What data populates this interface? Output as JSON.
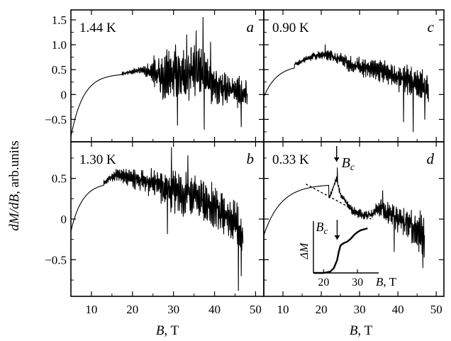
{
  "figure": {
    "ylabel_italic": "dM/dB",
    "ylabel_rest": ", arb.units",
    "xlabel_left_italic": "B",
    "xlabel_left_rest": ", T",
    "xlabel_right_italic": "B",
    "xlabel_right_rest": ", T"
  },
  "chart_data": [
    {
      "panel": "a",
      "position": "top-left",
      "type": "line",
      "temperature_label": "1.44 K",
      "letter": "a",
      "xlim": [
        5,
        52
      ],
      "ylim": [
        -0.95,
        1.7
      ],
      "yticks": [
        -0.5,
        0,
        0.5,
        1.0,
        1.5
      ],
      "ytick_labels": [
        "−0.5",
        "0",
        "0.5",
        "1.0",
        "1.5"
      ],
      "xticks": [
        10,
        20,
        30,
        40,
        50
      ],
      "xtick_labels": [],
      "series": [
        {
          "x_range": [
            5,
            48
          ],
          "smooth_end": 17.5,
          "rise": {
            "y0": -0.85,
            "y1": 0.42,
            "tau": 3.0
          },
          "trend": [
            [
              17.5,
              0.42
            ],
            [
              22,
              0.5
            ],
            [
              25,
              0.45
            ],
            [
              28,
              0.35
            ],
            [
              32,
              0.4
            ],
            [
              36,
              0.45
            ],
            [
              40,
              0.2
            ],
            [
              44,
              0.1
            ],
            [
              48,
              0.0
            ]
          ],
          "noise": [
            [
              17.5,
              0.04
            ],
            [
              22,
              0.07
            ],
            [
              25,
              0.25
            ],
            [
              28,
              0.55
            ],
            [
              32,
              0.6
            ],
            [
              36,
              0.6
            ],
            [
              40,
              0.4
            ],
            [
              44,
              0.35
            ],
            [
              48,
              0.3
            ]
          ],
          "spikes": [
            [
              25.2,
              0.78
            ],
            [
              37.2,
              1.55
            ],
            [
              35.5,
              1.28
            ],
            [
              33.2,
              1.2
            ],
            [
              39,
              1.05
            ],
            [
              30.5,
              1.0
            ],
            [
              37.5,
              -0.7
            ],
            [
              31,
              -0.62
            ],
            [
              46.5,
              -0.65
            ]
          ]
        }
      ]
    },
    {
      "panel": "c",
      "position": "top-right",
      "type": "line",
      "temperature_label": "0.90 K",
      "letter": "c",
      "xlim": [
        5,
        52
      ],
      "ylim": [
        -0.95,
        1.7
      ],
      "yticks": [
        -0.5,
        0,
        0.5,
        1.0,
        1.5
      ],
      "ytick_labels": [],
      "xticks": [
        10,
        20,
        30,
        40,
        50
      ],
      "xtick_labels": [],
      "series": [
        {
          "x_range": [
            5,
            48
          ],
          "smooth_end": 13,
          "rise": {
            "y0": -0.05,
            "y1": 0.6,
            "tau": 3.5
          },
          "trend": [
            [
              13,
              0.6
            ],
            [
              18,
              0.78
            ],
            [
              22,
              0.8
            ],
            [
              28,
              0.6
            ],
            [
              34,
              0.5
            ],
            [
              40,
              0.35
            ],
            [
              44,
              0.25
            ],
            [
              48,
              0.1
            ]
          ],
          "noise": [
            [
              13,
              0.04
            ],
            [
              18,
              0.08
            ],
            [
              22,
              0.12
            ],
            [
              28,
              0.18
            ],
            [
              34,
              0.25
            ],
            [
              40,
              0.3
            ],
            [
              44,
              0.35
            ],
            [
              48,
              0.35
            ]
          ],
          "spikes": [
            [
              44,
              -0.75
            ],
            [
              41.5,
              -0.55
            ],
            [
              47,
              -0.5
            ],
            [
              21,
              1.0
            ]
          ]
        }
      ]
    },
    {
      "panel": "b",
      "position": "bottom-left",
      "type": "line",
      "temperature_label": "1.30 K",
      "letter": "b",
      "xlim": [
        5,
        52
      ],
      "ylim": [
        -0.95,
        0.95
      ],
      "yticks": [
        -0.5,
        0,
        0.5
      ],
      "ytick_labels": [
        "−0.5",
        "0",
        "0.5"
      ],
      "xticks": [
        10,
        20,
        30,
        40,
        50
      ],
      "xtick_labels": [
        "10",
        "20",
        "30",
        "40",
        "50"
      ],
      "series": [
        {
          "x_range": [
            5,
            47
          ],
          "smooth_end": 13,
          "rise": {
            "y0": -0.15,
            "y1": 0.45,
            "tau": 2.8
          },
          "trend": [
            [
              13,
              0.45
            ],
            [
              16,
              0.55
            ],
            [
              20,
              0.5
            ],
            [
              25,
              0.45
            ],
            [
              30,
              0.35
            ],
            [
              35,
              0.3
            ],
            [
              40,
              0.15
            ],
            [
              44,
              0.0
            ],
            [
              47,
              -0.2
            ]
          ],
          "noise": [
            [
              13,
              0.03
            ],
            [
              16,
              0.08
            ],
            [
              20,
              0.12
            ],
            [
              25,
              0.2
            ],
            [
              30,
              0.3
            ],
            [
              35,
              0.3
            ],
            [
              40,
              0.3
            ],
            [
              44,
              0.3
            ],
            [
              47,
              0.35
            ]
          ],
          "spikes": [
            [
              29.5,
              0.88
            ],
            [
              33.5,
              0.78
            ],
            [
              28.5,
              -0.18
            ],
            [
              45.8,
              -0.88
            ],
            [
              46.5,
              -0.7
            ]
          ]
        }
      ]
    },
    {
      "panel": "d",
      "position": "bottom-right",
      "type": "line",
      "temperature_label": "0.33 K",
      "letter": "d",
      "xlim": [
        5,
        52
      ],
      "ylim": [
        -0.95,
        0.95
      ],
      "yticks": [
        -0.5,
        0,
        0.5
      ],
      "ytick_labels": [],
      "xticks": [
        10,
        20,
        30,
        40,
        50
      ],
      "xtick_labels": [
        "10",
        "20",
        "30",
        "40",
        "50"
      ],
      "annotation": "Bc",
      "annotation_x": 24,
      "background_dashed": {
        "from": [
          16,
          0.43
        ],
        "to": [
          33,
          0.0
        ]
      },
      "series": [
        {
          "x_range": [
            5,
            47
          ],
          "smooth_end": 22,
          "rise": {
            "y0": -0.2,
            "y1": 0.43,
            "tau": 4.5
          },
          "trend": [
            [
              16,
              0.43
            ],
            [
              20,
              0.33
            ],
            [
              22,
              0.25
            ],
            [
              24,
              0.5
            ],
            [
              25,
              0.3
            ],
            [
              28,
              0.1
            ],
            [
              31,
              0.05
            ],
            [
              33,
              0.05
            ],
            [
              35,
              0.15
            ],
            [
              40,
              0.0
            ],
            [
              44,
              -0.1
            ],
            [
              47,
              -0.2
            ]
          ],
          "noise": [
            [
              16,
              0.0
            ],
            [
              22,
              0.03
            ],
            [
              24,
              0.04
            ],
            [
              26,
              0.05
            ],
            [
              30,
              0.06
            ],
            [
              33,
              0.06
            ],
            [
              35,
              0.12
            ],
            [
              40,
              0.18
            ],
            [
              44,
              0.22
            ],
            [
              47,
              0.3
            ]
          ],
          "spikes": [
            [
              24.2,
              0.63
            ],
            [
              36,
              0.35
            ],
            [
              39,
              -0.4
            ],
            [
              46.5,
              -0.6
            ]
          ]
        }
      ],
      "inset": {
        "type": "line",
        "xlabel_italic": "B",
        "xlabel_rest": ", T",
        "ylabel": "ΔM",
        "annotation": "Bc",
        "annotation_x": 24,
        "xlim": [
          17,
          35
        ],
        "xticks": [
          20,
          30
        ],
        "xtick_labels": [
          "20",
          "30"
        ],
        "series": [
          {
            "x": [
              17,
              20,
              22,
              23,
              24,
              24.5,
              25,
              26,
              27,
              28,
              29,
              30,
              31,
              32,
              33
            ],
            "y": [
              0,
              0,
              0.03,
              0.1,
              0.27,
              0.45,
              0.58,
              0.63,
              0.66,
              0.72,
              0.8,
              0.86,
              0.9,
              0.92,
              0.94
            ]
          }
        ]
      }
    }
  ]
}
